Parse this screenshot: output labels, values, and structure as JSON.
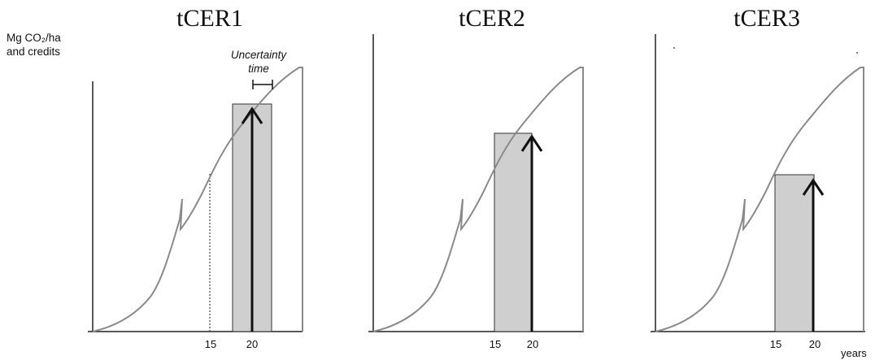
{
  "panels": [
    {
      "title": "tCER1",
      "ticks": [
        "15",
        "20"
      ]
    },
    {
      "title": "tCER2",
      "ticks": [
        "15",
        "20"
      ]
    },
    {
      "title": "tCER3",
      "ticks": [
        "15",
        "20"
      ]
    }
  ],
  "y_axis_label": {
    "line1": "Mg CO₂/ha",
    "line2": "and credits"
  },
  "uncertainty_label": {
    "line1": "Uncertainty",
    "line2": "time"
  },
  "x_axis_unit": "years",
  "colors": {
    "curve": "#8a8a8a",
    "bar_fill": "#cfcfcf",
    "arrow": "#111111",
    "axis": "#222222"
  }
}
